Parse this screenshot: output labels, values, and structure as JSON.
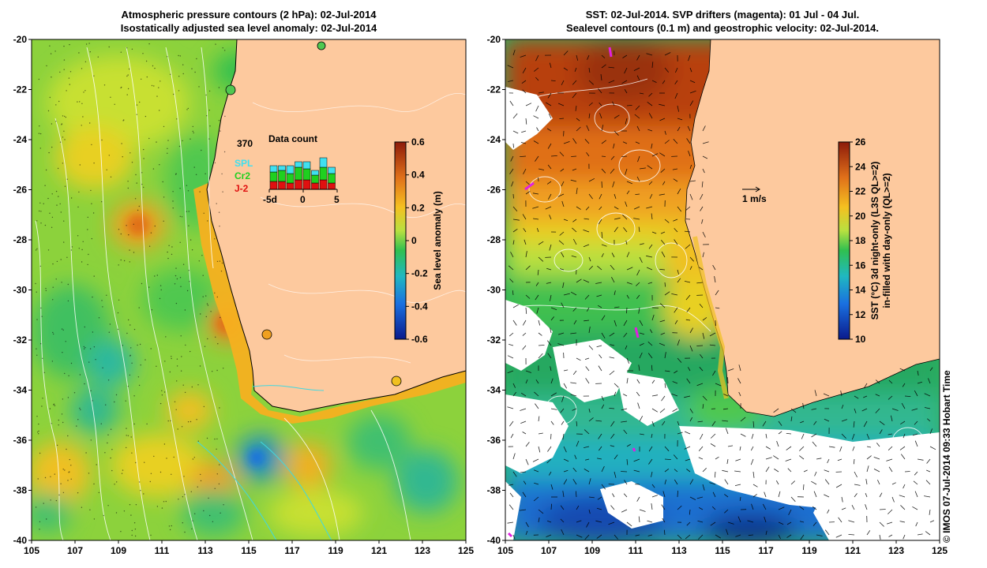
{
  "left_panel": {
    "title_line1": "Atmospheric pressure contours (2 hPa): 02-Jul-2014",
    "title_line2": "Isostatically adjusted sea level anomaly: 02-Jul-2014",
    "x_ticks": [
      "105",
      "107",
      "109",
      "111",
      "113",
      "115",
      "117",
      "119",
      "121",
      "123",
      "125"
    ],
    "y_ticks": [
      "-20",
      "-22",
      "-24",
      "-26",
      "-28",
      "-30",
      "-32",
      "-34",
      "-36",
      "-38",
      "-40"
    ],
    "colorbar": {
      "label": "Sea level anomaly (m)",
      "ticks": [
        "0.6",
        "0.4",
        "0.2",
        "0",
        "-0.2",
        "-0.4",
        "-0.6"
      ],
      "range": [
        -0.6,
        0.6
      ]
    },
    "inset": {
      "title": "Data count",
      "max_label": "370",
      "legend": [
        {
          "name": "SPL",
          "color": "#3fe0f0"
        },
        {
          "name": "Cr2",
          "color": "#1fd01f"
        },
        {
          "name": "J-2",
          "color": "#e01010"
        }
      ],
      "x_ticks": [
        "-5d",
        "0",
        "5"
      ]
    },
    "colors": {
      "land": "#fdc99e",
      "coast": "#000000",
      "anomaly_high": "#f7a51e",
      "anomaly_mid": "#8cd23c",
      "anomaly_low": "#2cb8a0"
    }
  },
  "right_panel": {
    "title_line1": "SST: 02-Jul-2014. SVP drifters (magenta): 01 Jul - 04 Jul.",
    "title_line2": "Sealevel contours (0.1 m) and geostrophic velocity: 02-Jul-2014.",
    "x_ticks": [
      "105",
      "107",
      "109",
      "111",
      "113",
      "115",
      "117",
      "119",
      "121",
      "123",
      "125"
    ],
    "y_ticks": [
      "-20",
      "-22",
      "-24",
      "-26",
      "-28",
      "-30",
      "-32",
      "-34",
      "-36",
      "-38",
      "-40"
    ],
    "velocity_scale_label": "1 m/s",
    "colorbar": {
      "label_line1": "SST (°C) 3d night-only (L3S QL>=2)",
      "label_line2": "in-filled with day-only (QL>=2)",
      "ticks": [
        "26",
        "24",
        "22",
        "20",
        "18",
        "16",
        "14",
        "12",
        "10"
      ],
      "range": [
        10,
        26
      ]
    },
    "colors": {
      "land": "#fdc99e",
      "drifter": "#e020e0",
      "warm": "#b8400a",
      "mid": "#f0c020",
      "cool": "#1a9a50",
      "cold": "#1870d0"
    }
  },
  "credit": "© IMOS 07-Jul-2014 09:33 Hobart Time"
}
